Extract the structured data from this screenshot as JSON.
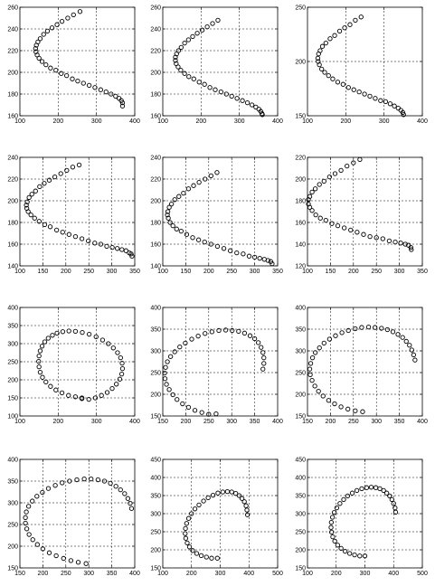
{
  "chart_data": [
    {
      "type": "scatter",
      "xlim": [
        100,
        400
      ],
      "ylim": [
        160,
        260
      ],
      "xticks": [
        100,
        200,
        300,
        400
      ],
      "yticks": [
        160,
        180,
        200,
        220,
        240,
        260
      ],
      "grid": true,
      "marker": "circle-open",
      "x": [
        257,
        240,
        225,
        210,
        197,
        184,
        172,
        162,
        153,
        147,
        143,
        141,
        142,
        145,
        150,
        158,
        168,
        180,
        194,
        208,
        222,
        237,
        251,
        266,
        281,
        296,
        311,
        325,
        338,
        350,
        359,
        365,
        368,
        368
      ],
      "y": [
        256,
        253,
        250,
        247,
        244,
        241,
        238,
        235,
        231,
        228,
        225,
        222,
        219,
        216,
        213,
        210,
        207,
        204,
        202,
        199,
        197,
        194,
        192,
        190,
        188,
        186,
        184,
        182,
        180,
        178,
        176,
        174,
        172,
        169
      ]
    },
    {
      "type": "scatter",
      "xlim": [
        100,
        400
      ],
      "ylim": [
        160,
        260
      ],
      "xticks": [
        100,
        200,
        300,
        400
      ],
      "yticks": [
        160,
        180,
        200,
        220,
        240,
        260
      ],
      "grid": true,
      "marker": "circle-open",
      "x": [
        244,
        230,
        216,
        203,
        190,
        178,
        167,
        157,
        148,
        141,
        136,
        133,
        133,
        135,
        140,
        147,
        157,
        168,
        181,
        195,
        209,
        223,
        237,
        252,
        266,
        280,
        294,
        308,
        321,
        333,
        343,
        351,
        356,
        359,
        360
      ],
      "y": [
        248,
        245,
        242,
        239,
        236,
        233,
        230,
        227,
        223,
        220,
        217,
        214,
        211,
        208,
        205,
        202,
        199,
        196,
        194,
        191,
        189,
        186,
        184,
        182,
        180,
        178,
        176,
        174,
        172,
        170,
        168,
        166,
        164,
        162,
        161
      ]
    },
    {
      "type": "scatter",
      "xlim": [
        100,
        400
      ],
      "ylim": [
        150,
        250
      ],
      "xticks": [
        100,
        200,
        300,
        400
      ],
      "yticks": [
        150,
        200,
        250
      ],
      "grid": true,
      "marker": "circle-open",
      "x": [
        240,
        225,
        211,
        197,
        184,
        171,
        159,
        148,
        139,
        133,
        129,
        127,
        128,
        131,
        137,
        145,
        155,
        166,
        179,
        193,
        207,
        221,
        235,
        249,
        263,
        277,
        291,
        304,
        316,
        327,
        337,
        344,
        349,
        351
      ],
      "y": [
        241,
        238,
        234,
        231,
        228,
        224,
        221,
        217,
        214,
        210,
        207,
        203,
        200,
        197,
        193,
        190,
        187,
        184,
        181,
        179,
        176,
        174,
        172,
        170,
        168,
        166,
        164,
        163,
        161,
        159,
        157,
        155,
        153,
        151
      ]
    },
    {
      "type": "scatter",
      "xlim": [
        100,
        350
      ],
      "ylim": [
        140,
        240
      ],
      "xticks": [
        100,
        150,
        200,
        250,
        300,
        350
      ],
      "yticks": [
        140,
        160,
        180,
        200,
        220,
        240
      ],
      "grid": true,
      "marker": "circle-open",
      "x": [
        229,
        215,
        202,
        189,
        176,
        164,
        153,
        143,
        134,
        126,
        120,
        116,
        114,
        115,
        118,
        124,
        132,
        142,
        154,
        166,
        180,
        193,
        207,
        221,
        235,
        249,
        263,
        276,
        289,
        301,
        312,
        322,
        331,
        338,
        342,
        344
      ],
      "y": [
        233,
        231,
        228,
        225,
        222,
        219,
        216,
        213,
        209,
        206,
        203,
        199,
        196,
        193,
        190,
        187,
        184,
        181,
        178,
        176,
        173,
        171,
        169,
        167,
        165,
        163,
        161,
        160,
        158,
        157,
        156,
        155,
        154,
        152,
        151,
        149
      ]
    },
    {
      "type": "scatter",
      "xlim": [
        100,
        350
      ],
      "ylim": [
        140,
        240
      ],
      "xticks": [
        100,
        150,
        200,
        250,
        300,
        350
      ],
      "yticks": [
        140,
        160,
        180,
        200,
        220,
        240
      ],
      "grid": true,
      "marker": "circle-open",
      "x": [
        218,
        205,
        192,
        179,
        167,
        156,
        145,
        135,
        126,
        119,
        114,
        111,
        110,
        112,
        116,
        122,
        130,
        140,
        152,
        165,
        178,
        191,
        205,
        219,
        233,
        247,
        261,
        275,
        288,
        300,
        311,
        321,
        329,
        335,
        338
      ],
      "y": [
        226,
        223,
        220,
        217,
        214,
        211,
        207,
        204,
        201,
        197,
        194,
        190,
        187,
        184,
        180,
        177,
        174,
        172,
        169,
        166,
        164,
        162,
        160,
        158,
        156,
        154,
        152,
        151,
        149,
        148,
        147,
        146,
        145,
        144,
        142
      ]
    },
    {
      "type": "scatter",
      "xlim": [
        100,
        350
      ],
      "ylim": [
        120,
        220
      ],
      "xticks": [
        100,
        150,
        200,
        250,
        300,
        350
      ],
      "yticks": [
        120,
        140,
        160,
        180,
        200,
        220
      ],
      "grid": true,
      "marker": "circle-open",
      "x": [
        214,
        200,
        186,
        173,
        160,
        148,
        136,
        126,
        117,
        110,
        105,
        102,
        102,
        105,
        110,
        118,
        128,
        140,
        153,
        166,
        180,
        194,
        208,
        222,
        236,
        250,
        264,
        278,
        291,
        303,
        313,
        320,
        325,
        326
      ],
      "y": [
        218,
        215,
        212,
        208,
        205,
        202,
        198,
        195,
        191,
        188,
        184,
        181,
        177,
        174,
        171,
        167,
        164,
        162,
        159,
        157,
        155,
        153,
        151,
        149,
        147,
        146,
        145,
        143,
        142,
        141,
        140,
        139,
        137,
        135
      ]
    },
    {
      "type": "scatter",
      "xlim": [
        100,
        400
      ],
      "ylim": [
        100,
        400
      ],
      "xticks": [
        100,
        200,
        300,
        400
      ],
      "yticks": [
        100,
        150,
        200,
        250,
        300,
        350,
        400
      ],
      "grid": true,
      "marker": "circle-open",
      "x": [
        262,
        280,
        297,
        313,
        328,
        341,
        352,
        361,
        366,
        368,
        367,
        363,
        355,
        344,
        331,
        316,
        299,
        281,
        263,
        245,
        228,
        212,
        197,
        185,
        174,
        165,
        158,
        153,
        150,
        149,
        150,
        153,
        159,
        168,
        180,
        194,
        210,
        227,
        245,
        262
      ],
      "y": [
        148,
        146,
        150,
        157,
        165,
        176,
        188,
        202,
        216,
        231,
        246,
        261,
        275,
        288,
        300,
        310,
        319,
        326,
        331,
        334,
        335,
        333,
        329,
        323,
        315,
        305,
        293,
        280,
        266,
        251,
        236,
        221,
        207,
        194,
        182,
        172,
        164,
        157,
        153,
        150
      ]
    },
    {
      "type": "scatter",
      "xlim": [
        150,
        400
      ],
      "ylim": [
        150,
        400
      ],
      "xticks": [
        150,
        200,
        250,
        300,
        350,
        400
      ],
      "yticks": [
        150,
        200,
        250,
        300,
        350,
        400
      ],
      "grid": true,
      "marker": "circle-open",
      "x": [
        266,
        250,
        235,
        220,
        206,
        193,
        181,
        172,
        164,
        158,
        155,
        154,
        156,
        160,
        167,
        176,
        187,
        199,
        213,
        227,
        242,
        257,
        272,
        287,
        301,
        315,
        328,
        340,
        350,
        358,
        364,
        368,
        370,
        370,
        368
      ],
      "y": [
        155,
        154,
        158,
        163,
        170,
        178,
        188,
        199,
        211,
        223,
        236,
        249,
        262,
        275,
        287,
        298,
        309,
        318,
        327,
        334,
        340,
        344,
        347,
        348,
        347,
        345,
        341,
        335,
        328,
        319,
        308,
        296,
        284,
        271,
        258
      ]
    },
    {
      "type": "scatter",
      "xlim": [
        150,
        400
      ],
      "ylim": [
        150,
        400
      ],
      "xticks": [
        150,
        200,
        250,
        300,
        350,
        400
      ],
      "yticks": [
        150,
        200,
        250,
        300,
        350,
        400
      ],
      "grid": true,
      "marker": "circle-open",
      "x": [
        270,
        254,
        238,
        223,
        209,
        196,
        184,
        174,
        166,
        160,
        156,
        155,
        157,
        161,
        167,
        176,
        186,
        198,
        211,
        225,
        239,
        254,
        268,
        283,
        297,
        311,
        324,
        336,
        347,
        357,
        365,
        372,
        377,
        381,
        384
      ],
      "y": [
        160,
        162,
        166,
        171,
        178,
        186,
        196,
        207,
        219,
        232,
        245,
        258,
        271,
        284,
        296,
        307,
        318,
        327,
        335,
        342,
        347,
        351,
        354,
        355,
        354,
        352,
        349,
        344,
        338,
        331,
        322,
        313,
        302,
        291,
        279
      ]
    },
    {
      "type": "scatter",
      "xlim": [
        150,
        400
      ],
      "ylim": [
        150,
        400
      ],
      "xticks": [
        150,
        200,
        250,
        300,
        350,
        400
      ],
      "yticks": [
        150,
        200,
        250,
        300,
        350,
        400
      ],
      "grid": true,
      "marker": "circle-open",
      "x": [
        294,
        277,
        261,
        245,
        229,
        214,
        200,
        188,
        178,
        170,
        165,
        162,
        162,
        164,
        169,
        177,
        187,
        199,
        212,
        227,
        242,
        258,
        274,
        290,
        305,
        320,
        334,
        347,
        359,
        369,
        378,
        385,
        390,
        393
      ],
      "y": [
        160,
        163,
        167,
        172,
        178,
        185,
        194,
        204,
        215,
        227,
        240,
        253,
        266,
        279,
        292,
        304,
        315,
        324,
        333,
        340,
        346,
        350,
        353,
        355,
        355,
        353,
        350,
        345,
        338,
        330,
        321,
        310,
        299,
        287
      ]
    },
    {
      "type": "scatter",
      "xlim": [
        100,
        500
      ],
      "ylim": [
        150,
        450
      ],
      "xticks": [
        100,
        200,
        300,
        400,
        500
      ],
      "yticks": [
        150,
        200,
        250,
        300,
        350,
        400,
        450
      ],
      "grid": true,
      "marker": "circle-open",
      "x": [
        290,
        270,
        252,
        234,
        218,
        204,
        193,
        185,
        180,
        178,
        179,
        183,
        190,
        200,
        212,
        226,
        242,
        258,
        275,
        292,
        309,
        325,
        340,
        354,
        366,
        376,
        384,
        390,
        393,
        395
      ],
      "y": [
        177,
        177,
        180,
        184,
        190,
        198,
        208,
        219,
        232,
        245,
        259,
        273,
        287,
        300,
        313,
        324,
        335,
        344,
        351,
        357,
        360,
        361,
        360,
        356,
        350,
        342,
        333,
        322,
        310,
        297
      ]
    },
    {
      "type": "scatter",
      "xlim": [
        100,
        500
      ],
      "ylim": [
        150,
        450
      ],
      "xticks": [
        100,
        200,
        300,
        400,
        500
      ],
      "yticks": [
        150,
        200,
        250,
        300,
        350,
        400,
        450
      ],
      "grid": true,
      "marker": "circle-open",
      "x": [
        300,
        282,
        264,
        247,
        231,
        217,
        205,
        195,
        188,
        184,
        182,
        183,
        187,
        193,
        202,
        213,
        226,
        240,
        256,
        272,
        289,
        306,
        322,
        338,
        352,
        365,
        376,
        386,
        394,
        400,
        405,
        407
      ],
      "y": [
        183,
        183,
        186,
        190,
        196,
        204,
        213,
        224,
        236,
        249,
        262,
        276,
        290,
        303,
        316,
        328,
        339,
        349,
        357,
        364,
        369,
        372,
        373,
        372,
        369,
        364,
        357,
        349,
        339,
        328,
        316,
        304
      ]
    }
  ]
}
